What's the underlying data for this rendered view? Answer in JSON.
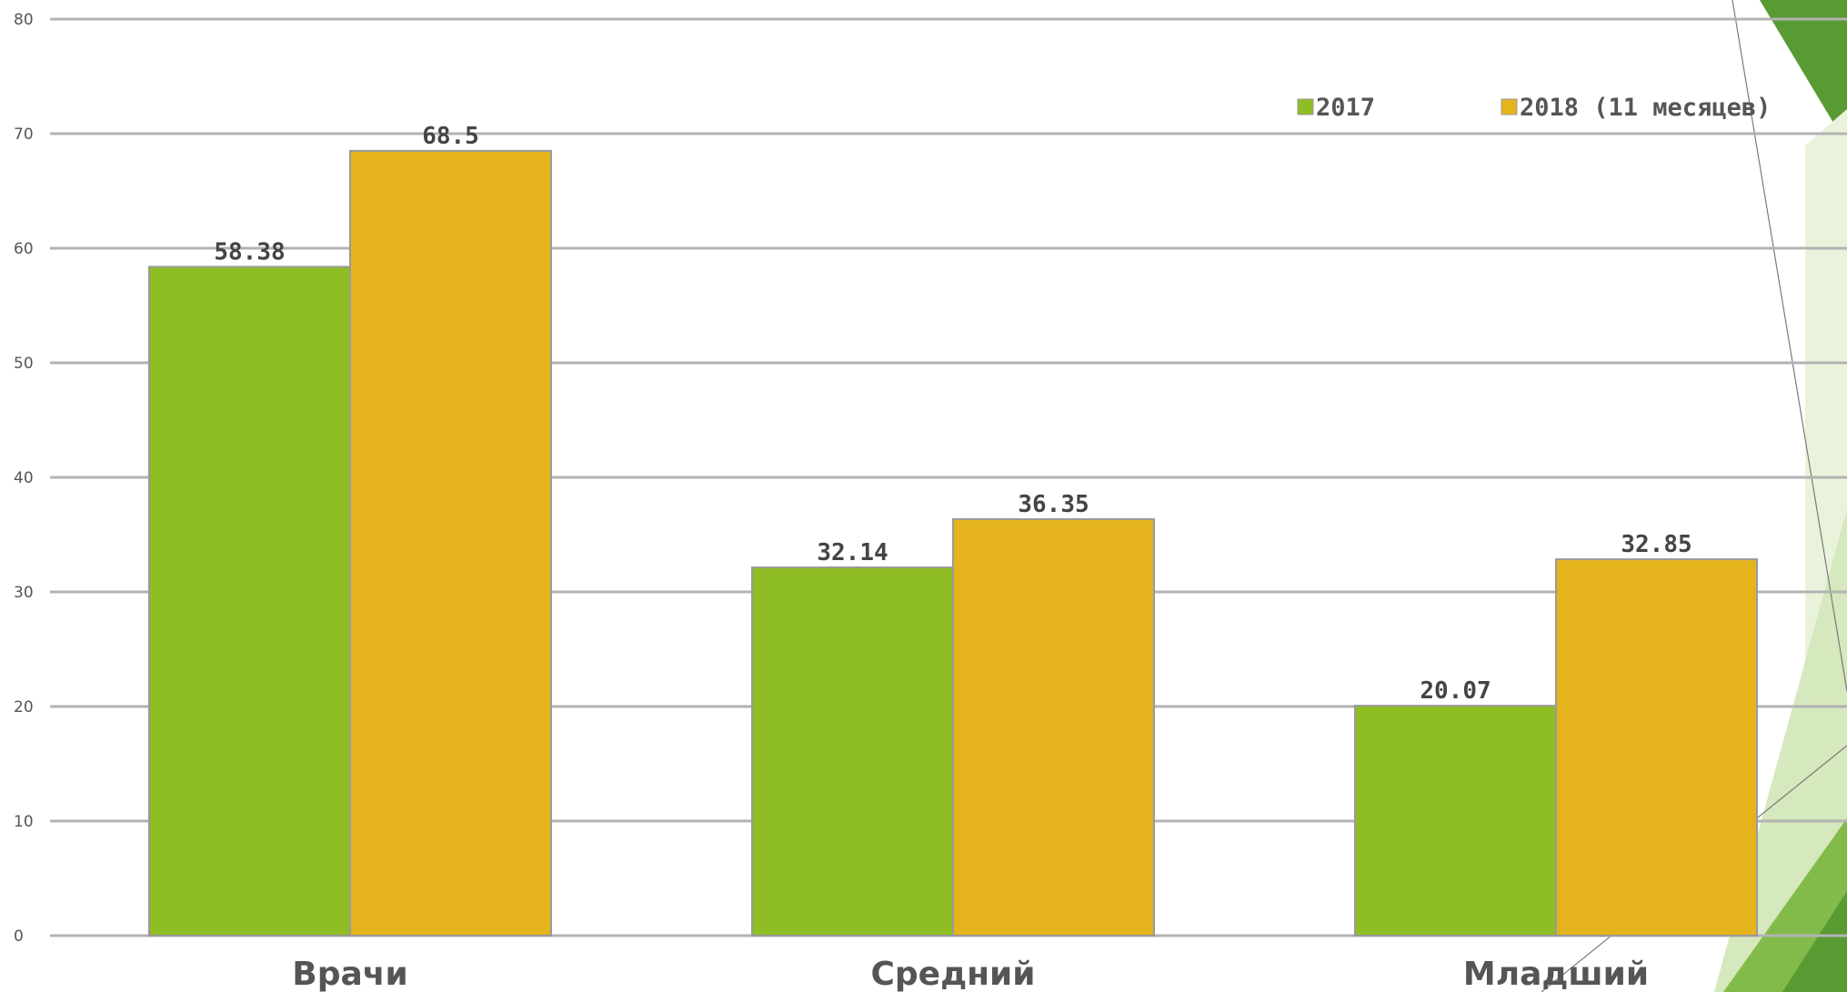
{
  "chart_data": {
    "type": "bar",
    "categories": [
      "Врачи",
      "Средний",
      "Младший"
    ],
    "series": [
      {
        "name": "2017",
        "values": [
          58.38,
          32.14,
          20.07
        ],
        "color": "#8fbe24"
      },
      {
        "name": "2018 (11 месяцев)",
        "values": [
          68.5,
          36.35,
          32.85
        ],
        "color": "#e5b41d"
      }
    ],
    "data_labels": [
      [
        "58.38",
        "32.14",
        "20.07"
      ],
      [
        "68.5",
        "36.35",
        "32.85"
      ]
    ],
    "ylim": [
      0,
      80
    ],
    "yticks": [
      0,
      10,
      20,
      30,
      40,
      50,
      60,
      70,
      80
    ],
    "title": "",
    "xlabel": "",
    "ylabel": "",
    "grid": true,
    "legend_position": "top-right"
  },
  "colors": {
    "grid": "#b3b3b3",
    "bar_border": "#9a9a9a",
    "decor_dark": "#5a9a33",
    "decor_mid": "#82bb4a",
    "decor_light": "#d6e8bd",
    "decor_lighter": "#e9f3dc"
  }
}
